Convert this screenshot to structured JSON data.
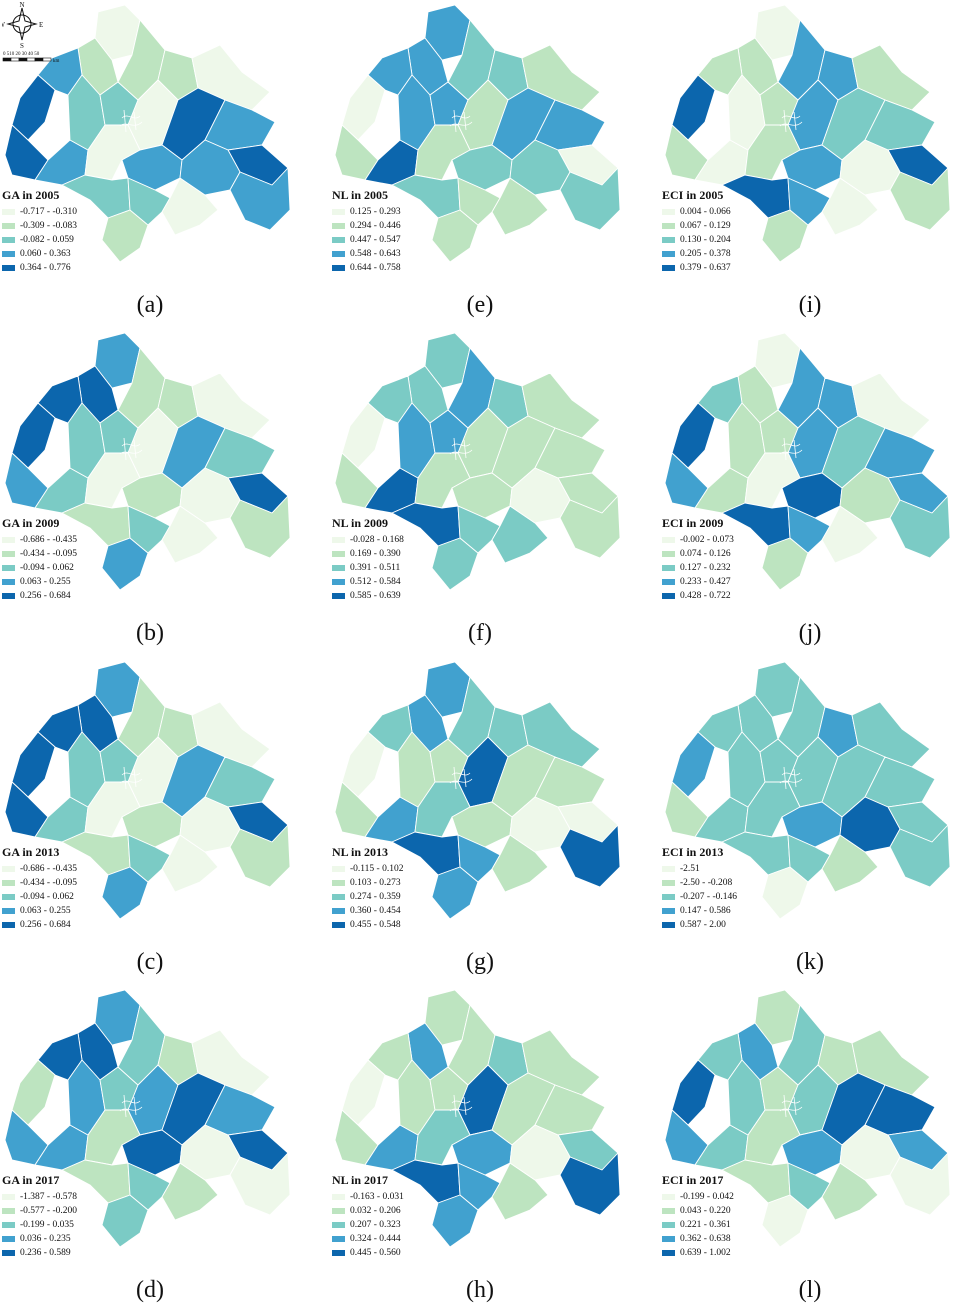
{
  "colors": {
    "classes": [
      "#eef8ea",
      "#bde4c0",
      "#7bcbc5",
      "#41a1cf",
      "#0c66ad"
    ],
    "boundary": "#ffffff",
    "compass": "#111111"
  },
  "compass": {
    "north": "N",
    "south": "S",
    "east": "E",
    "west": "W",
    "scale_ticks": "0 510  20  30  40  50",
    "scale_unit": "km"
  },
  "panels": [
    {
      "id": "a",
      "label": "(a)",
      "legend_title": "GA in 2005",
      "ranges": [
        "-0.717 - -0.310",
        "-0.309 - -0.083",
        "-0.082 - 0.059",
        "0.060 - 0.363",
        "0.364 - 0.776"
      ],
      "regions": [
        0,
        1,
        3,
        4,
        4,
        3,
        2,
        2,
        1,
        1,
        0,
        0,
        0,
        4,
        3,
        4,
        3,
        2,
        1,
        2,
        0,
        3,
        3
      ]
    },
    {
      "id": "e",
      "label": "(e)",
      "legend_title": "NL in 2005",
      "ranges": [
        "0.125 - 0.293",
        "0.294 - 0.446",
        "0.447 - 0.547",
        "0.548 - 0.643",
        "0.644 - 0.758"
      ],
      "regions": [
        3,
        3,
        3,
        0,
        1,
        4,
        3,
        3,
        2,
        2,
        1,
        1,
        1,
        3,
        3,
        0,
        2,
        2,
        1,
        1,
        1,
        2,
        2
      ]
    },
    {
      "id": "i",
      "label": "(i)",
      "legend_title": "ECI in 2005",
      "ranges": [
        "0.004 - 0.066",
        "0.067 - 0.129",
        "0.130 - 0.204",
        "0.205 - 0.378",
        "0.379 - 0.637"
      ],
      "regions": [
        0,
        1,
        1,
        4,
        1,
        0,
        0,
        1,
        3,
        3,
        3,
        1,
        1,
        2,
        2,
        4,
        3,
        4,
        1,
        3,
        0,
        0,
        1
      ]
    },
    {
      "id": "b",
      "label": "(b)",
      "legend_title": "GA in 2009",
      "ranges": [
        "-0.686 - -0.435",
        "-0.434 - -0.095",
        "-0.094 - 0.062",
        "0.063 - 0.255",
        "0.256 - 0.684"
      ],
      "regions": [
        3,
        4,
        4,
        4,
        3,
        2,
        2,
        2,
        1,
        1,
        0,
        0,
        0,
        3,
        2,
        4,
        1,
        1,
        3,
        2,
        0,
        0,
        1
      ]
    },
    {
      "id": "f",
      "label": "(f)",
      "legend_title": "NL in 2009",
      "ranges": [
        "-0.028 - 0.168",
        "0.169 - 0.390",
        "0.391 - 0.511",
        "0.512 - 0.584",
        "0.585 - 0.639"
      ],
      "regions": [
        2,
        2,
        2,
        0,
        1,
        4,
        3,
        3,
        3,
        2,
        1,
        1,
        1,
        1,
        1,
        1,
        1,
        4,
        2,
        2,
        2,
        0,
        1
      ]
    },
    {
      "id": "j",
      "label": "(j)",
      "legend_title": "ECI in 2009",
      "ranges": [
        "-0.002 - 0.073",
        "0.074 - 0.126",
        "0.127 - 0.232",
        "0.233 - 0.427",
        "0.428 - 0.722"
      ],
      "regions": [
        0,
        1,
        2,
        4,
        3,
        1,
        1,
        1,
        3,
        3,
        3,
        0,
        0,
        2,
        3,
        3,
        4,
        4,
        1,
        3,
        0,
        1,
        2
      ]
    },
    {
      "id": "c",
      "label": "(c)",
      "legend_title": "GA in 2013",
      "ranges": [
        "-0.686 - -0.435",
        "-0.434 - -0.095",
        "-0.094 - 0.062",
        "0.063 - 0.255",
        "0.256 - 0.684"
      ],
      "regions": [
        3,
        4,
        4,
        4,
        4,
        2,
        2,
        2,
        1,
        1,
        0,
        0,
        0,
        3,
        2,
        4,
        1,
        1,
        3,
        2,
        0,
        0,
        1
      ]
    },
    {
      "id": "g",
      "label": "(g)",
      "legend_title": "NL in 2013",
      "ranges": [
        "-0.115 - 0.102",
        "0.103 - 0.273",
        "0.274 - 0.359",
        "0.360 - 0.454",
        "0.455 - 0.548"
      ],
      "regions": [
        3,
        3,
        2,
        0,
        1,
        3,
        1,
        1,
        2,
        2,
        4,
        2,
        2,
        1,
        1,
        0,
        1,
        4,
        3,
        3,
        1,
        0,
        4
      ]
    },
    {
      "id": "k",
      "label": "(k)",
      "legend_title": "ECI in 2013",
      "ranges": [
        "-2.51",
        "-2.50 - -0.208",
        "-0.207 - -0.146",
        "0.147 - 0.586",
        "0.587 - 2.00"
      ],
      "regions": [
        2,
        2,
        2,
        3,
        1,
        2,
        2,
        2,
        2,
        3,
        2,
        2,
        2,
        2,
        2,
        2,
        3,
        2,
        0,
        2,
        1,
        4,
        2
      ]
    },
    {
      "id": "d",
      "label": "(d)",
      "legend_title": "GA in 2017",
      "ranges": [
        "-1.387 - -0.578",
        "-0.577 - -0.200",
        "-0.199 - 0.035",
        "0.036 - 0.235",
        "0.236 - 0.589"
      ],
      "regions": [
        3,
        4,
        4,
        1,
        3,
        3,
        3,
        2,
        2,
        1,
        3,
        1,
        0,
        4,
        3,
        4,
        4,
        1,
        2,
        2,
        1,
        0,
        0
      ]
    },
    {
      "id": "h",
      "label": "(h)",
      "legend_title": "NL in 2017",
      "ranges": [
        "-0.163 - 0.031",
        "0.032 - 0.206",
        "0.207 - 0.323",
        "0.324 - 0.444",
        "0.445 - 0.560"
      ],
      "regions": [
        1,
        3,
        1,
        0,
        1,
        3,
        1,
        1,
        1,
        2,
        4,
        2,
        1,
        1,
        1,
        2,
        3,
        4,
        3,
        3,
        1,
        0,
        4
      ]
    },
    {
      "id": "l",
      "label": "(l)",
      "legend_title": "ECI in 2017",
      "ranges": [
        "-0.199 - 0.042",
        "0.043 - 0.220",
        "0.221 - 0.361",
        "0.362 - 0.638",
        "0.639 - 1.002"
      ],
      "regions": [
        1,
        3,
        2,
        4,
        3,
        2,
        2,
        1,
        2,
        1,
        2,
        1,
        1,
        4,
        4,
        3,
        3,
        1,
        0,
        2,
        1,
        0,
        0
      ]
    }
  ]
}
